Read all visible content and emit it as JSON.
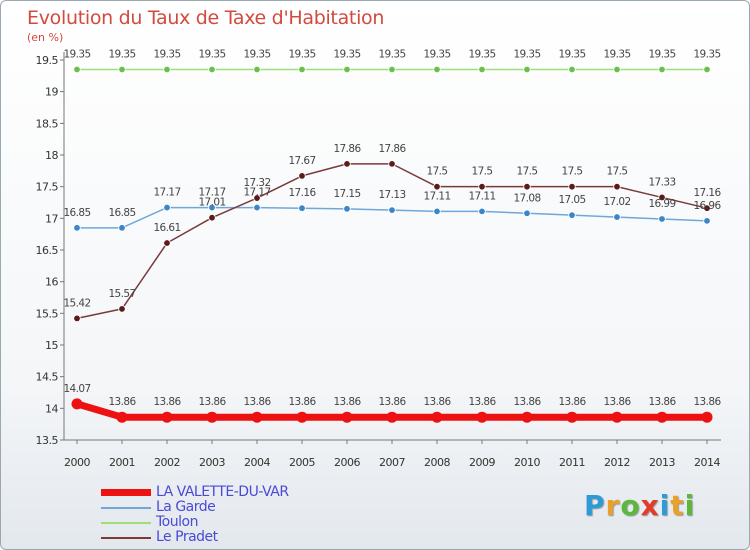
{
  "title": "Evolution du Taux de Taxe d'Habitation",
  "unit": "(en %)",
  "logo": {
    "text": "Proxiti",
    "letters": [
      {
        "ch": "P",
        "color": "#2f9ad8"
      },
      {
        "ch": "r",
        "color": "#e9a12a"
      },
      {
        "ch": "o",
        "color": "#5cb83a"
      },
      {
        "ch": "x",
        "color": "#e23b2a"
      },
      {
        "ch": "i",
        "color": "#2f9ad8"
      },
      {
        "ch": "t",
        "color": "#e9a12a"
      },
      {
        "ch": "i",
        "color": "#5cb83a"
      }
    ]
  },
  "chart_data": {
    "type": "line",
    "x": [
      2000,
      2001,
      2002,
      2003,
      2004,
      2005,
      2006,
      2007,
      2008,
      2009,
      2010,
      2011,
      2012,
      2013,
      2014
    ],
    "ylim": [
      13.5,
      19.5
    ],
    "yticks": [
      13.5,
      14,
      14.5,
      15,
      15.5,
      16,
      16.5,
      17,
      17.5,
      18,
      18.5,
      19,
      19.5
    ],
    "grid": false,
    "legend_position": "bottom-left",
    "series": [
      {
        "name": "LA VALETTE-DU-VAR",
        "color": "#ee1111",
        "marker": "#ee1111",
        "width": 7,
        "values": [
          14.07,
          13.86,
          13.86,
          13.86,
          13.86,
          13.86,
          13.86,
          13.86,
          13.86,
          13.86,
          13.86,
          13.86,
          13.86,
          13.86,
          13.86
        ],
        "labels": [
          "14.07",
          "13.86",
          "13.86",
          "13.86",
          "13.86",
          "13.86",
          "13.86",
          "13.86",
          "13.86",
          "13.86",
          "13.86",
          "13.86",
          "13.86",
          "13.86",
          "13.86"
        ]
      },
      {
        "name": "La Garde",
        "color": "#6fa8d8",
        "marker": "#3a86c8",
        "width": 1.5,
        "values": [
          16.85,
          16.85,
          17.17,
          17.17,
          17.17,
          17.16,
          17.15,
          17.13,
          17.11,
          17.11,
          17.08,
          17.05,
          17.02,
          16.99,
          16.96
        ],
        "labels": [
          "16.85",
          "16.85",
          "17.17",
          "17.17",
          "17.17",
          "17.16",
          "17.15",
          "17.13",
          "17.11",
          "17.11",
          "17.08",
          "17.05",
          "17.02",
          "16.99",
          "16.96"
        ]
      },
      {
        "name": "Toulon",
        "color": "#9fdc7a",
        "marker": "#6cc04a",
        "width": 1.5,
        "values": [
          19.35,
          19.35,
          19.35,
          19.35,
          19.35,
          19.35,
          19.35,
          19.35,
          19.35,
          19.35,
          19.35,
          19.35,
          19.35,
          19.35,
          19.35
        ],
        "labels": [
          "19.35",
          "19.35",
          "19.35",
          "19.35",
          "19.35",
          "19.35",
          "19.35",
          "19.35",
          "19.35",
          "19.35",
          "19.35",
          "19.35",
          "19.35",
          "19.35",
          "19.35"
        ]
      },
      {
        "name": "Le Pradet",
        "color": "#7a3a3a",
        "marker": "#5c1a1a",
        "width": 1.5,
        "values": [
          15.42,
          15.57,
          16.61,
          17.01,
          17.32,
          17.67,
          17.86,
          17.86,
          17.5,
          17.5,
          17.5,
          17.5,
          17.5,
          17.33,
          17.16
        ],
        "labels": [
          "15.42",
          "15.57",
          "16.61",
          "17.01",
          "17.32",
          "17.67",
          "17.86",
          "17.86",
          "17.5",
          "17.5",
          "17.5",
          "17.5",
          "17.5",
          "17.33",
          "17.16"
        ]
      }
    ]
  }
}
